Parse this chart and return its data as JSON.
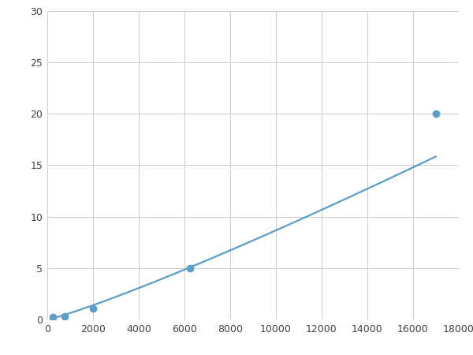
{
  "x": [
    250,
    750,
    2000,
    6250,
    17000
  ],
  "y": [
    0.2,
    0.3,
    1.1,
    5.0,
    20.0
  ],
  "line_color": "#5b9dc9",
  "marker_color": "#5b9dc9",
  "marker_size": 6,
  "line_width": 1.6,
  "xlim": [
    0,
    18000
  ],
  "ylim": [
    0,
    30
  ],
  "xticks": [
    0,
    2000,
    4000,
    6000,
    8000,
    10000,
    12000,
    14000,
    16000,
    18000
  ],
  "yticks": [
    0,
    5,
    10,
    15,
    20,
    25,
    30
  ],
  "grid_color": "#cccccc",
  "background_color": "#ffffff",
  "figure_facecolor": "#ffffff"
}
